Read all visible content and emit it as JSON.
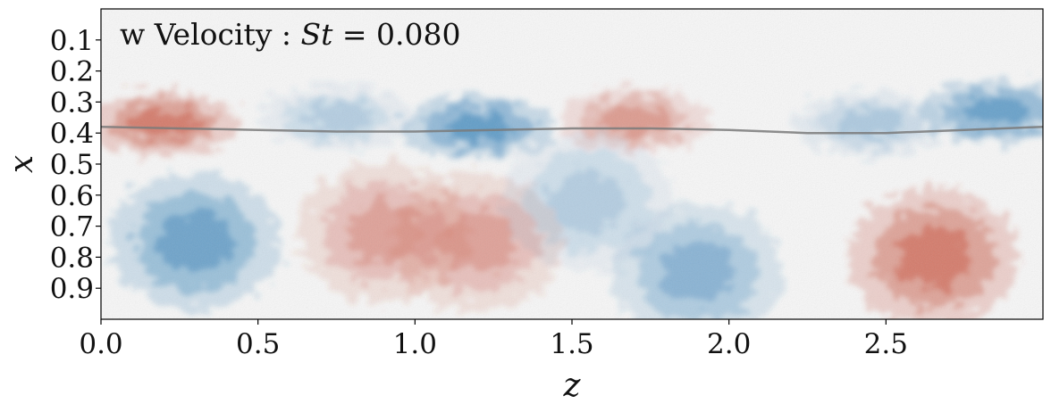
{
  "chart_data": {
    "type": "heatmap",
    "title": "w Velocity : St = 0.080",
    "title_parts": {
      "prefix": "w Velocity : ",
      "symbol": "St",
      "suffix": " = 0.080"
    },
    "xlabel": "z",
    "ylabel": "x",
    "xlim": [
      0.0,
      3.0
    ],
    "ylim": [
      1.0,
      0.0
    ],
    "y_inverted": true,
    "x_ticks": [
      0.0,
      0.5,
      1.0,
      1.5,
      2.0,
      2.5
    ],
    "x_tick_labels": [
      "0.0",
      "0.5",
      "1.0",
      "1.5",
      "2.0",
      "2.5"
    ],
    "y_ticks": [
      0.1,
      0.2,
      0.3,
      0.4,
      0.5,
      0.6,
      0.7,
      0.8,
      0.9
    ],
    "y_tick_labels": [
      "0.1",
      "0.2",
      "0.3",
      "0.4",
      "0.5",
      "0.6",
      "0.7",
      "0.8",
      "0.9"
    ],
    "colormap": "RdBu_r (red = positive w, blue = negative w)",
    "colors": {
      "positive": "#c8503c",
      "negative": "#2f7fb8",
      "neutral": "#f7f7f7",
      "interface_line": "#7a7a7a"
    },
    "grid": false,
    "legend": "none",
    "interface_line": {
      "z": [
        0.0,
        0.25,
        0.5,
        0.75,
        1.0,
        1.25,
        1.5,
        1.75,
        2.0,
        2.25,
        2.5,
        2.75,
        3.0
      ],
      "x": [
        0.38,
        0.385,
        0.39,
        0.395,
        0.395,
        0.39,
        0.385,
        0.385,
        0.39,
        0.4,
        0.4,
        0.39,
        0.38
      ]
    },
    "structures": [
      {
        "z": 0.2,
        "x": 0.37,
        "sign": 1,
        "amp": 0.85
      },
      {
        "z": 0.75,
        "x": 0.35,
        "sign": -1,
        "amp": 0.3
      },
      {
        "z": 1.2,
        "x": 0.38,
        "sign": -1,
        "amp": 0.85
      },
      {
        "z": 1.7,
        "x": 0.36,
        "sign": 1,
        "amp": 0.55
      },
      {
        "z": 2.85,
        "x": 0.33,
        "sign": -1,
        "amp": 0.8
      },
      {
        "z": 2.45,
        "x": 0.37,
        "sign": -1,
        "amp": 0.35
      },
      {
        "z": 0.3,
        "x": 0.75,
        "sign": -1,
        "amp": 0.75
      },
      {
        "z": 0.9,
        "x": 0.72,
        "sign": 1,
        "amp": 0.5
      },
      {
        "z": 1.2,
        "x": 0.75,
        "sign": 1,
        "amp": 0.5
      },
      {
        "z": 1.9,
        "x": 0.85,
        "sign": -1,
        "amp": 0.55
      },
      {
        "z": 1.55,
        "x": 0.62,
        "sign": -1,
        "amp": 0.3
      },
      {
        "z": 2.65,
        "x": 0.8,
        "sign": 1,
        "amp": 0.85
      }
    ]
  }
}
